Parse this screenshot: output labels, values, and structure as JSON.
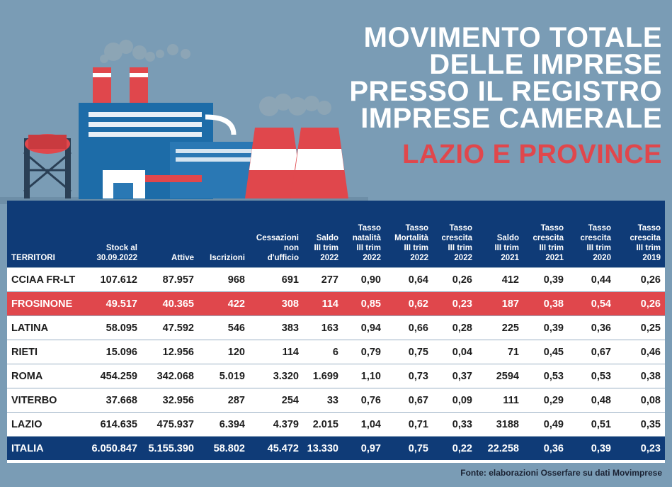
{
  "header": {
    "title_lines": [
      "MOVIMENTO TOTALE",
      "DELLE IMPRESE",
      "PRESSO IL REGISTRO",
      "IMPRESE CAMERALE"
    ],
    "subtitle": "LAZIO E PROVINCE"
  },
  "colors": {
    "background": "#7a9cb5",
    "navy": "#0f3b77",
    "accent_red": "#e0474c",
    "white": "#ffffff"
  },
  "illustration": {
    "icon": "factory-icon"
  },
  "source": "Fonte: elaborazioni Osserfare su dati Movimprese",
  "chart_data": {
    "type": "table",
    "title": "MOVIMENTO TOTALE DELLE IMPRESE PRESSO IL REGISTRO IMPRESE CAMERALE",
    "subtitle": "LAZIO E PROVINCE",
    "columns": [
      "TERRITORI",
      "Stock al 30.09.2022",
      "Attive",
      "Iscrizioni",
      "Cessazioni non d'ufficio",
      "Saldo III trim 2022",
      "Tasso natalità III trim 2022",
      "Tasso Mortalità III trim 2022",
      "Tasso crescita III trim 2022",
      "Saldo III trim 2021",
      "Tasso crescita III trim 2021",
      "Tasso crescita III trim 2020",
      "Tasso crescita III trim 2019"
    ],
    "header_lines": [
      [
        "TERRITORI"
      ],
      [
        "Stock al",
        "30.09.2022"
      ],
      [
        "Attive"
      ],
      [
        "Iscrizioni"
      ],
      [
        "Cessazioni",
        "non",
        "d'ufficio"
      ],
      [
        "Saldo",
        "III trim",
        "2022"
      ],
      [
        "Tasso",
        "natalità",
        "III trim",
        "2022"
      ],
      [
        "Tasso",
        "Mortalità",
        "III trim",
        "2022"
      ],
      [
        "Tasso",
        "crescita",
        "III trim",
        "2022"
      ],
      [
        "Saldo",
        "III trim",
        "2021"
      ],
      [
        "Tasso",
        "crescita",
        "III trim",
        "2021"
      ],
      [
        "Tasso",
        "crescita",
        "III trim",
        "2020"
      ],
      [
        "Tasso",
        "crescita",
        "III trim",
        "2019"
      ]
    ],
    "rows": [
      {
        "highlight": "none",
        "cells": [
          "CCIAA FR-LT",
          "107.612",
          "87.957",
          "968",
          "691",
          "277",
          "0,90",
          "0,64",
          "0,26",
          "412",
          "0,39",
          "0,44",
          "0,26"
        ]
      },
      {
        "highlight": "red",
        "cells": [
          "FROSINONE",
          "49.517",
          "40.365",
          "422",
          "308",
          "114",
          "0,85",
          "0,62",
          "0,23",
          "187",
          "0,38",
          "0,54",
          "0,26"
        ]
      },
      {
        "highlight": "none",
        "cells": [
          "LATINA",
          "58.095",
          "47.592",
          "546",
          "383",
          "163",
          "0,94",
          "0,66",
          "0,28",
          "225",
          "0,39",
          "0,36",
          "0,25"
        ]
      },
      {
        "highlight": "none",
        "cells": [
          "RIETI",
          "15.096",
          "12.956",
          "120",
          "114",
          "6",
          "0,79",
          "0,75",
          "0,04",
          "71",
          "0,45",
          "0,67",
          "0,46"
        ]
      },
      {
        "highlight": "none",
        "cells": [
          "ROMA",
          "454.259",
          "342.068",
          "5.019",
          "3.320",
          "1.699",
          "1,10",
          "0,73",
          "0,37",
          "2594",
          "0,53",
          "0,53",
          "0,38"
        ]
      },
      {
        "highlight": "none",
        "cells": [
          "VITERBO",
          "37.668",
          "32.956",
          "287",
          "254",
          "33",
          "0,76",
          "0,67",
          "0,09",
          "111",
          "0,29",
          "0,48",
          "0,08"
        ]
      },
      {
        "highlight": "none",
        "cells": [
          "LAZIO",
          "614.635",
          "475.937",
          "6.394",
          "4.379",
          "2.015",
          "1,04",
          "0,71",
          "0,33",
          "3188",
          "0,49",
          "0,51",
          "0,35"
        ]
      },
      {
        "highlight": "navy",
        "cells": [
          "ITALIA",
          "6.050.847",
          "5.155.390",
          "58.802",
          "45.472",
          "13.330",
          "0,97",
          "0,75",
          "0,22",
          "22.258",
          "0,36",
          "0,39",
          "0,23"
        ]
      }
    ]
  }
}
